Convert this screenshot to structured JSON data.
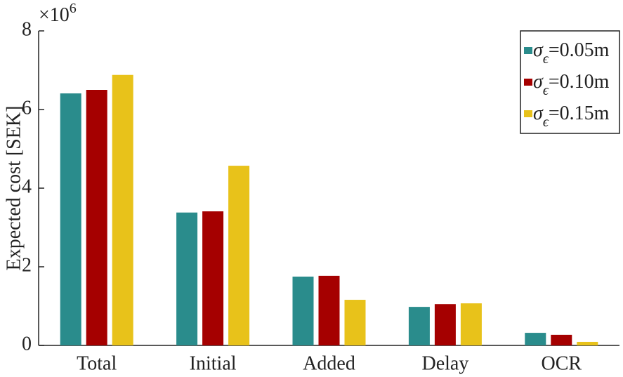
{
  "chart_data": {
    "type": "bar",
    "y_label": "Expected cost [SEK]",
    "y_multiplier": {
      "base": "×10",
      "exponent": "6"
    },
    "categories": [
      "Total",
      "Initial",
      "Added",
      "Delay",
      "OCR"
    ],
    "series": [
      {
        "name": "σϵ=0.05m",
        "color": "#2a8c8c",
        "values": [
          6.41,
          3.38,
          1.75,
          0.98,
          0.32
        ]
      },
      {
        "name": "σϵ=0.10m",
        "color": "#a50000",
        "values": [
          6.5,
          3.41,
          1.77,
          1.05,
          0.27
        ]
      },
      {
        "name": "σϵ=0.15m",
        "color": "#e8c21a",
        "values": [
          6.88,
          4.57,
          1.16,
          1.07,
          0.09
        ]
      }
    ],
    "ylim": [
      0,
      8
    ],
    "yticks": [
      0,
      2,
      4,
      6,
      8
    ],
    "legend": "upper right"
  }
}
